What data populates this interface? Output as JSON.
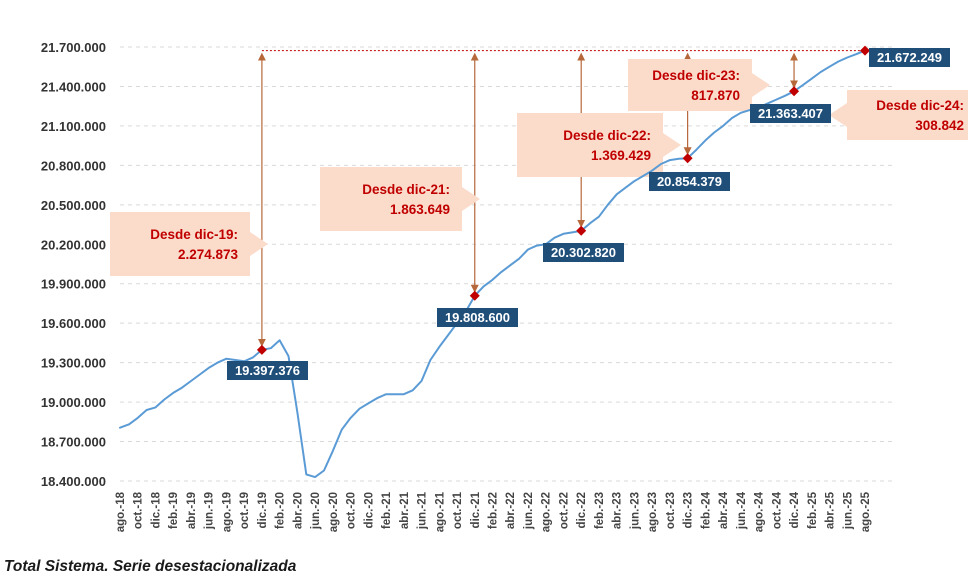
{
  "caption": "Total Sistema. Serie desestacionalizada",
  "colors": {
    "line": "#5b9bd5",
    "label_bg": "#1f4e79",
    "marker": "#c00000",
    "arrow": "#b7683a",
    "callout_bg": "#fbdccb",
    "callout_text": "#c00000",
    "grid": "#d9d9d9",
    "ref_line": "#c00000"
  },
  "chart_data": {
    "type": "line",
    "title": "",
    "xlabel": "",
    "ylabel": "",
    "ylim": [
      18400000,
      21700000
    ],
    "yticks": [
      {
        "value": 18400000,
        "label": "18.400.000"
      },
      {
        "value": 18700000,
        "label": "18.700.000"
      },
      {
        "value": 19000000,
        "label": "19.000.000"
      },
      {
        "value": 19300000,
        "label": "19.300.000"
      },
      {
        "value": 19600000,
        "label": "19.600.000"
      },
      {
        "value": 19900000,
        "label": "19.900.000"
      },
      {
        "value": 20200000,
        "label": "20.200.000"
      },
      {
        "value": 20500000,
        "label": "20.500.000"
      },
      {
        "value": 20800000,
        "label": "20.800.000"
      },
      {
        "value": 21100000,
        "label": "21.100.000"
      },
      {
        "value": 21400000,
        "label": "21.400.000"
      },
      {
        "value": 21700000,
        "label": "21.700.000"
      }
    ],
    "x_start": "ago.-18",
    "xticks": [
      {
        "index": 0,
        "label": "ago.-18"
      },
      {
        "index": 2,
        "label": "oct.-18"
      },
      {
        "index": 4,
        "label": "dic.-18"
      },
      {
        "index": 6,
        "label": "feb.-19"
      },
      {
        "index": 8,
        "label": "abr.-19"
      },
      {
        "index": 10,
        "label": "jun.-19"
      },
      {
        "index": 12,
        "label": "ago.-19"
      },
      {
        "index": 14,
        "label": "oct.-19"
      },
      {
        "index": 16,
        "label": "dic.-19"
      },
      {
        "index": 18,
        "label": "feb.-20"
      },
      {
        "index": 20,
        "label": "abr.-20"
      },
      {
        "index": 22,
        "label": "jun.-20"
      },
      {
        "index": 24,
        "label": "ago.-20"
      },
      {
        "index": 26,
        "label": "oct.-20"
      },
      {
        "index": 28,
        "label": "dic.-20"
      },
      {
        "index": 30,
        "label": "feb.-21"
      },
      {
        "index": 32,
        "label": "abr.-21"
      },
      {
        "index": 34,
        "label": "jun.-21"
      },
      {
        "index": 36,
        "label": "ago.-21"
      },
      {
        "index": 38,
        "label": "oct.-21"
      },
      {
        "index": 40,
        "label": "dic.-21"
      },
      {
        "index": 42,
        "label": "feb.-22"
      },
      {
        "index": 44,
        "label": "abr.-22"
      },
      {
        "index": 46,
        "label": "jun.-22"
      },
      {
        "index": 48,
        "label": "ago.-22"
      },
      {
        "index": 50,
        "label": "oct.-22"
      },
      {
        "index": 52,
        "label": "dic.-22"
      },
      {
        "index": 54,
        "label": "feb.-23"
      },
      {
        "index": 56,
        "label": "abr.-23"
      },
      {
        "index": 58,
        "label": "jun.-23"
      },
      {
        "index": 60,
        "label": "ago.-23"
      },
      {
        "index": 62,
        "label": "oct.-23"
      },
      {
        "index": 64,
        "label": "dic.-23"
      },
      {
        "index": 66,
        "label": "feb.-24"
      },
      {
        "index": 68,
        "label": "abr.-24"
      },
      {
        "index": 70,
        "label": "jun.-24"
      },
      {
        "index": 72,
        "label": "ago.-24"
      },
      {
        "index": 74,
        "label": "oct.-24"
      },
      {
        "index": 76,
        "label": "dic.-24"
      },
      {
        "index": 78,
        "label": "feb.-25"
      },
      {
        "index": 80,
        "label": "abr.-25"
      },
      {
        "index": 82,
        "label": "jun.-25"
      },
      {
        "index": 84,
        "label": "ago.-25"
      }
    ],
    "series": [
      {
        "name": "Total Sistema",
        "values": [
          18805000,
          18830000,
          18880000,
          18940000,
          18960000,
          19020000,
          19070000,
          19110000,
          19160000,
          19210000,
          19260000,
          19300000,
          19330000,
          19320000,
          19310000,
          19340000,
          19397376,
          19410000,
          19470000,
          19350000,
          18920000,
          18450000,
          18430000,
          18480000,
          18630000,
          18790000,
          18880000,
          18950000,
          18990000,
          19030000,
          19060000,
          19060000,
          19060000,
          19090000,
          19160000,
          19320000,
          19420000,
          19510000,
          19600000,
          19690000,
          19808600,
          19880000,
          19930000,
          19990000,
          20040000,
          20090000,
          20160000,
          20190000,
          20200000,
          20250000,
          20280000,
          20290000,
          20302820,
          20360000,
          20410000,
          20500000,
          20580000,
          20630000,
          20680000,
          20720000,
          20760000,
          20810000,
          20840000,
          20850000,
          20854379,
          20920000,
          20990000,
          21050000,
          21100000,
          21160000,
          21200000,
          21220000,
          21240000,
          21270000,
          21300000,
          21330000,
          21363407,
          21410000,
          21460000,
          21510000,
          21550000,
          21590000,
          21620000,
          21645000,
          21672249
        ]
      }
    ],
    "reference_line": {
      "value": 21672249
    },
    "highlights": [
      {
        "index": 16,
        "value": 19397376,
        "label": "19.397.376",
        "callout_line1": "Desde dic-19:",
        "callout_line2": "2.274.873"
      },
      {
        "index": 40,
        "value": 19808600,
        "label": "19.808.600",
        "callout_line1": "Desde dic-21:",
        "callout_line2": "1.863.649"
      },
      {
        "index": 52,
        "value": 20302820,
        "label": "20.302.820",
        "callout_line1": "Desde dic-22:",
        "callout_line2": "1.369.429"
      },
      {
        "index": 64,
        "value": 20854379,
        "label": "20.854.379",
        "callout_line1": "Desde dic-23:",
        "callout_line2": "817.870"
      },
      {
        "index": 76,
        "value": 21363407,
        "label": "21.363.407",
        "callout_line1": "Desde dic-24:",
        "callout_line2": "308.842"
      },
      {
        "index": 84,
        "value": 21672249,
        "label": "21.672.249"
      }
    ]
  }
}
